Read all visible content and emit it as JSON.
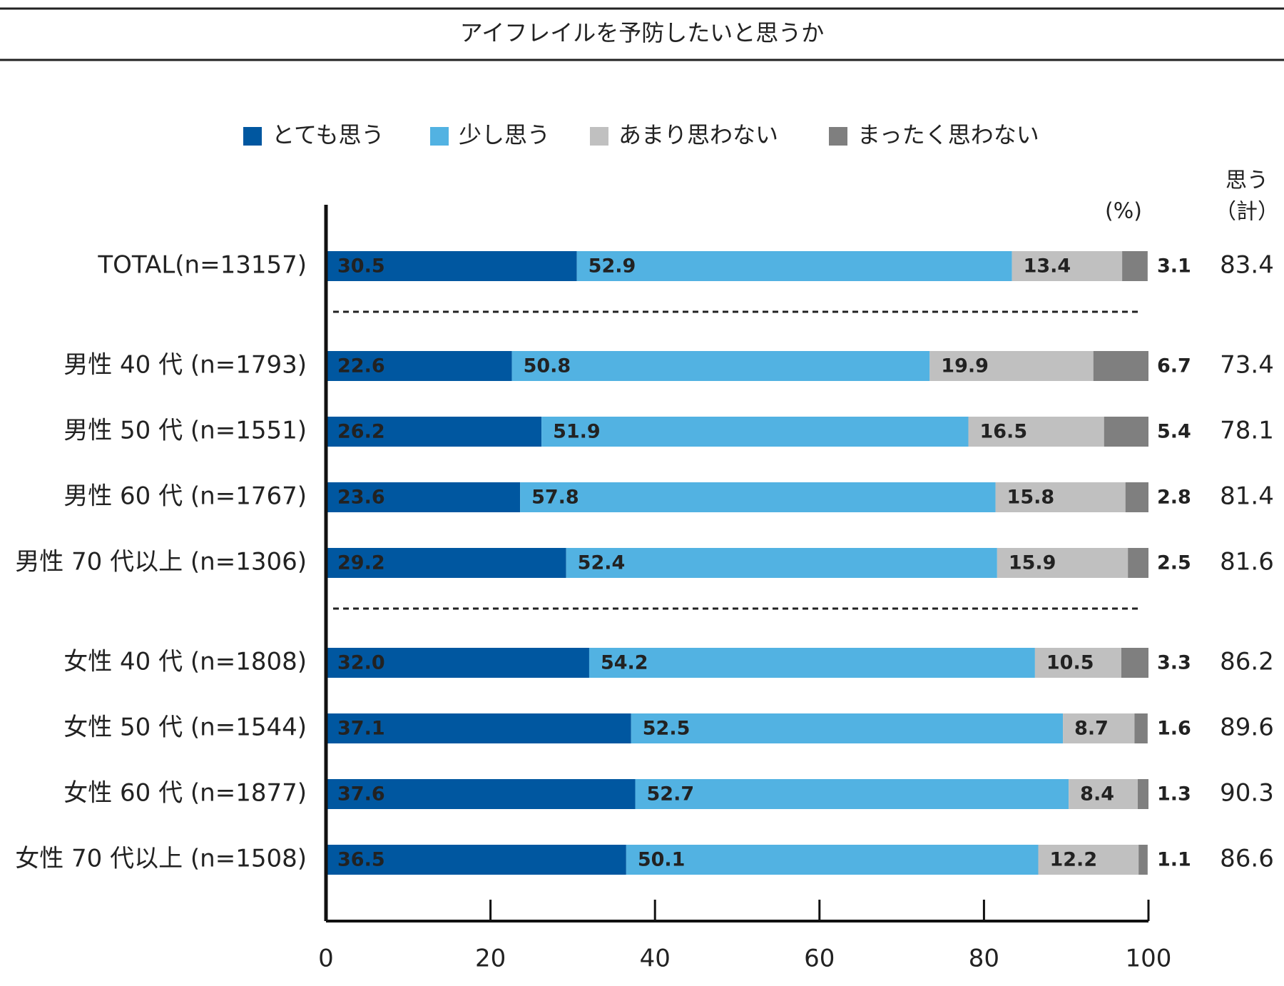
{
  "chart_data": {
    "type": "stacked-bar-horizontal",
    "title": "アイフレイルを予防したいと思うか",
    "unit_label": "(%)",
    "categories": [
      "TOTAL(n=13157)",
      "男性 40 代 (n=1793)",
      "男性 50 代 (n=1551)",
      "男性 60 代 (n=1767)",
      "男性 70 代以上 (n=1306)",
      "女性 40 代 (n=1808)",
      "女性 50 代 (n=1544)",
      "女性 60 代 (n=1877)",
      "女性 70 代以上 (n=1508)"
    ],
    "series": [
      {
        "name": "とても思う",
        "color": "#0057a0",
        "values": [
          30.5,
          22.6,
          26.2,
          23.6,
          29.2,
          32.0,
          37.1,
          37.6,
          36.5
        ],
        "value_labels": [
          "30.5",
          "22.6",
          "26.2",
          "23.6",
          "29.2",
          "32.0",
          "37.1",
          "37.6",
          "36.5"
        ]
      },
      {
        "name": "少し思う",
        "color": "#52b2e2",
        "values": [
          52.9,
          50.8,
          51.9,
          57.8,
          52.4,
          54.2,
          52.5,
          52.7,
          50.1
        ]
      },
      {
        "name": "あまり思わない",
        "color": "#c0c0c0",
        "values": [
          13.4,
          19.9,
          16.5,
          15.8,
          15.9,
          10.5,
          8.7,
          8.4,
          12.2
        ]
      },
      {
        "name": "まったく思わない",
        "color": "#7f7f7f",
        "values": [
          3.1,
          6.7,
          5.4,
          2.8,
          2.5,
          3.3,
          1.6,
          1.3,
          1.1
        ]
      }
    ],
    "totals": {
      "label": [
        "思う",
        "（計）"
      ],
      "values": [
        83.4,
        73.4,
        78.1,
        81.4,
        81.6,
        86.2,
        89.6,
        90.3,
        86.6
      ]
    },
    "xlim": [
      0,
      100
    ],
    "xticks": [
      0,
      20,
      40,
      60,
      80,
      100
    ]
  }
}
